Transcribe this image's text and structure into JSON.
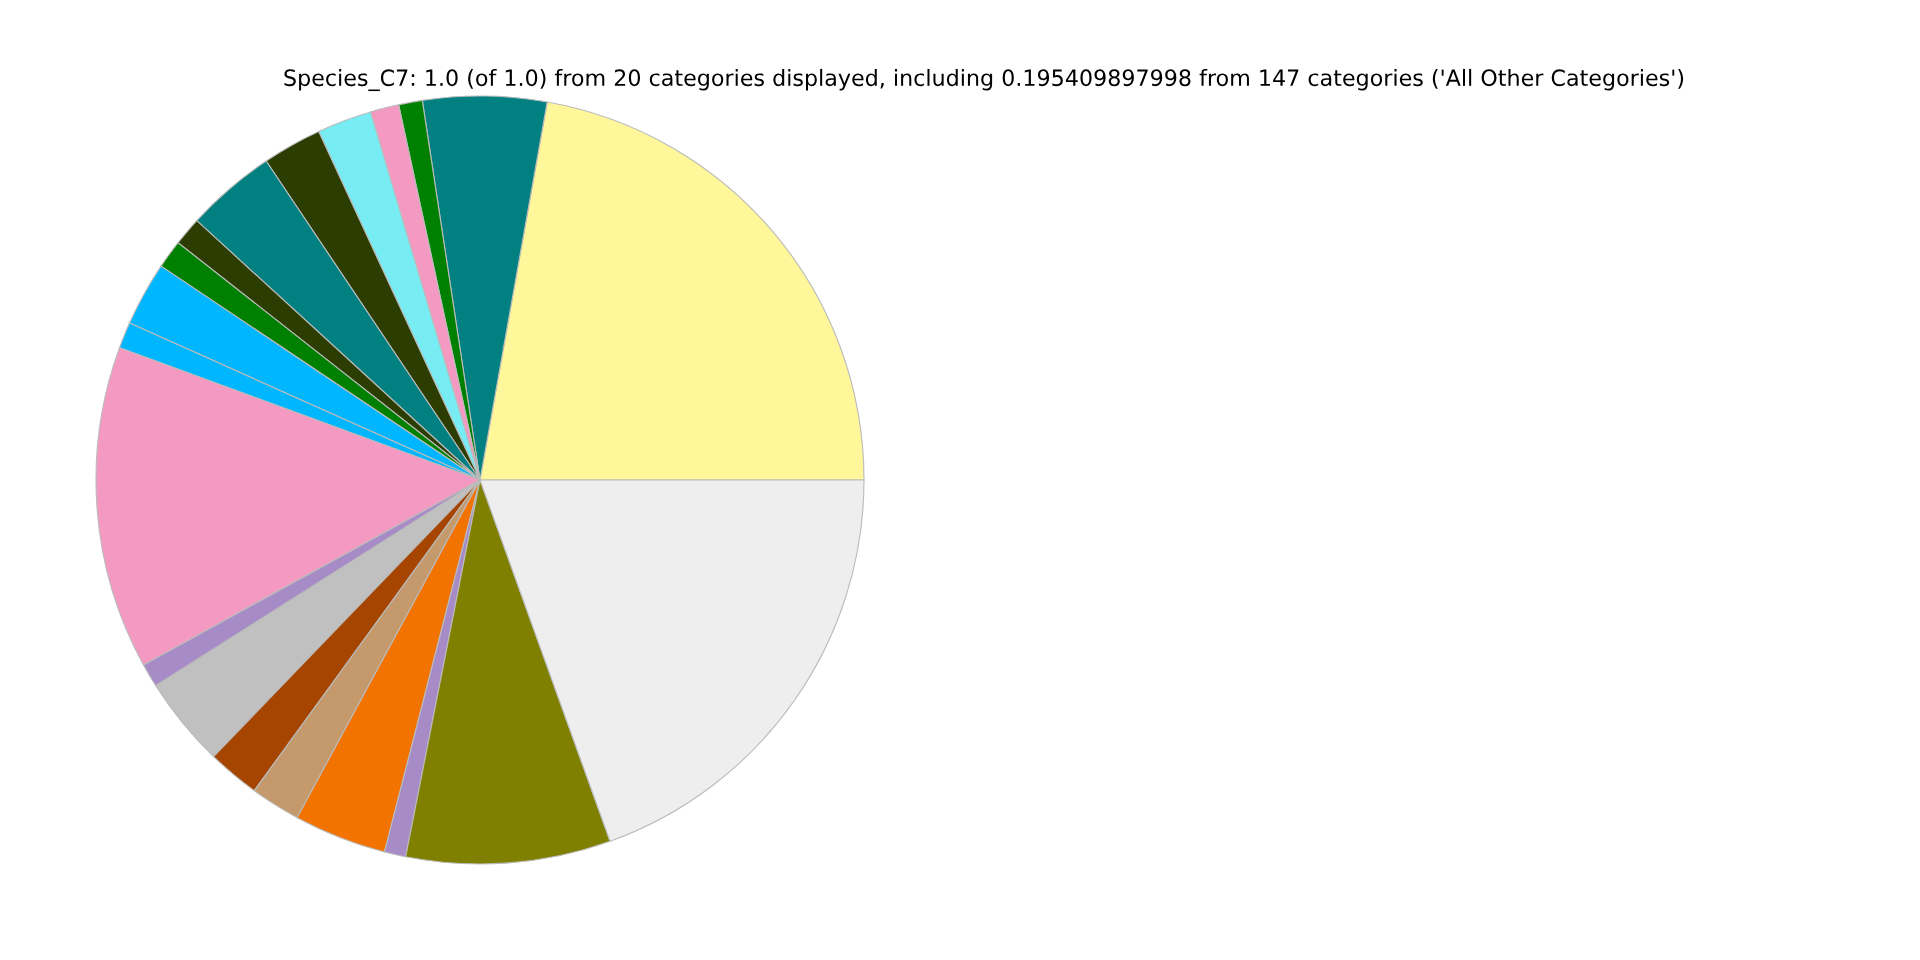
{
  "chart_data": {
    "type": "pie",
    "title": "Species_C7: 1.0 (of 1.0) from 20 categories displayed, including 0.195409897998 from 147 categories ('All Other Categories')",
    "categories": [
      null,
      null,
      null,
      null,
      null,
      null,
      null,
      null,
      null,
      null,
      null,
      null,
      null,
      null,
      null,
      null,
      null,
      null,
      null,
      null
    ],
    "values": [
      22.2,
      5.2,
      1.0,
      1.2,
      2.3,
      2.5,
      3.8,
      1.2,
      1.2,
      2.7,
      1.1,
      13.6,
      1.0,
      3.8,
      2.2,
      2.1,
      3.9,
      0.9,
      8.6,
      19.5
    ],
    "colors": [
      "#fff799",
      "#008080",
      "#008000",
      "#f49ac2",
      "#77ecf2",
      "#2b3d00",
      "#008080",
      "#2b3d00",
      "#008000",
      "#00b6ff",
      "#00b6ff",
      "#f49ac2",
      "#a68bc6",
      "#c0c0c0",
      "#a64500",
      "#c49a6c",
      "#f27300",
      "#a68bc6",
      "#808000",
      "#eeeeee"
    ]
  }
}
